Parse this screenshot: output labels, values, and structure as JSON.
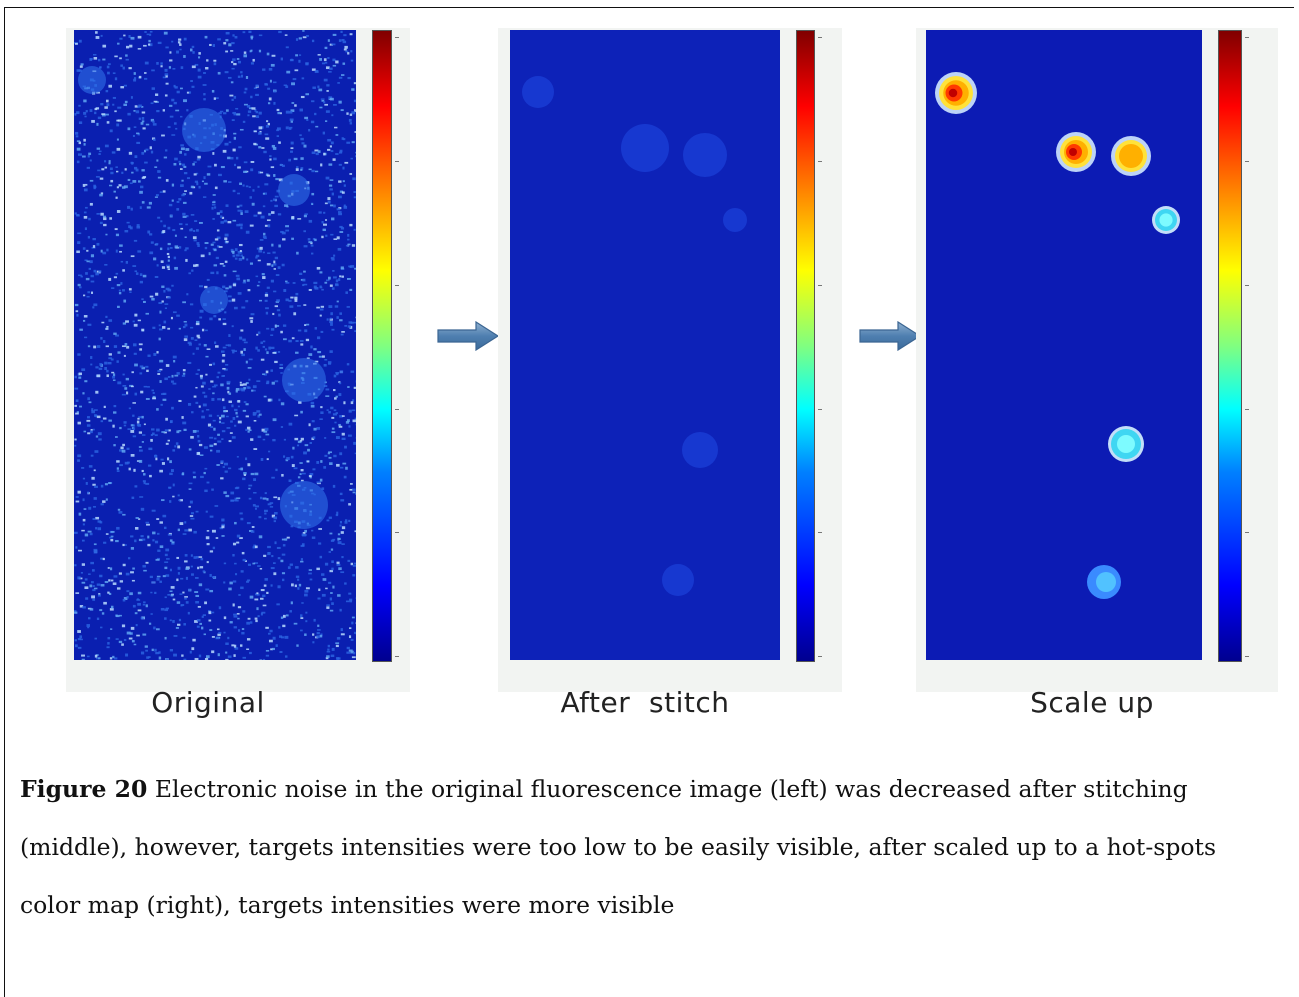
{
  "figure": {
    "panels": [
      {
        "label": "Original"
      },
      {
        "label": "After  stitch"
      },
      {
        "label": "Scale up"
      }
    ],
    "colormap": "jet",
    "colors": {
      "low": "#00008f",
      "background": "#0b1fb3",
      "high": "#800000"
    },
    "arrow_icon": "right-arrow-icon"
  },
  "caption": {
    "label": "Figure 20",
    "text": " Electronic noise in the original fluorescence image (left) was decreased after stitching (middle), however, targets intensities were too low to be easily visible, after scaled up to a hot-spots color map (right), targets intensities were more visible"
  }
}
